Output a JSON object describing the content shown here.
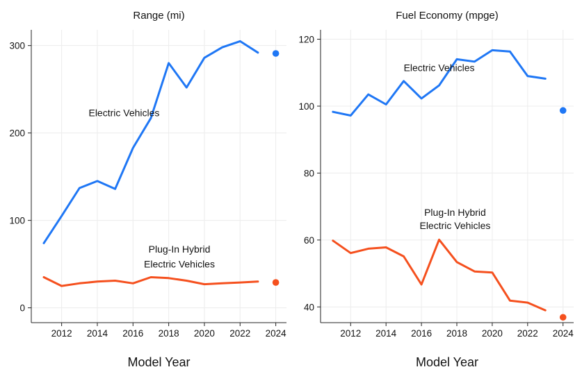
{
  "chart_data": [
    {
      "type": "line",
      "title": "Range (mi)",
      "xlabel": "Model Year",
      "ylabel": "",
      "xlim": [
        2010.3,
        2024.6
      ],
      "ylim": [
        -17,
        318
      ],
      "xticks": [
        2012,
        2014,
        2016,
        2018,
        2020,
        2022,
        2024
      ],
      "yticks": [
        0,
        100,
        200,
        300
      ],
      "grid": true,
      "series": [
        {
          "name": "Electric Vehicles",
          "color": "#1f77f5",
          "x": [
            2011,
            2012,
            2013,
            2014,
            2015,
            2016,
            2017,
            2018,
            2019,
            2020,
            2021,
            2022,
            2023
          ],
          "values": [
            74,
            105,
            137,
            145,
            136,
            183,
            217,
            280,
            252,
            286,
            298,
            305,
            292
          ],
          "point_2024": 291
        },
        {
          "name": "Plug-In Hybrid Electric Vehicles",
          "color": "#f5501e",
          "x": [
            2011,
            2012,
            2013,
            2014,
            2015,
            2016,
            2017,
            2018,
            2019,
            2020,
            2021,
            2022,
            2023
          ],
          "values": [
            35,
            25,
            28,
            30,
            31,
            28,
            35,
            34,
            31,
            27,
            28,
            29,
            30
          ],
          "point_2024": 29
        }
      ],
      "annotations": [
        {
          "text": "Electric Vehicles",
          "x": 2015.5,
          "y": 219
        },
        {
          "text": "Plug-In Hybrid",
          "x": 2018.6,
          "y": 63
        },
        {
          "text": "Electric Vehicles",
          "x": 2018.6,
          "y": 46
        }
      ]
    },
    {
      "type": "line",
      "title": "Fuel Economy (mpge)",
      "xlabel": "Model Year",
      "ylabel": "",
      "xlim": [
        2010.3,
        2024.6
      ],
      "ylim": [
        35.3,
        122.8
      ],
      "xticks": [
        2012,
        2014,
        2016,
        2018,
        2020,
        2022,
        2024
      ],
      "yticks": [
        40,
        60,
        80,
        100,
        120
      ],
      "grid": true,
      "series": [
        {
          "name": "Electric Vehicles",
          "color": "#1f77f5",
          "x": [
            2011,
            2012,
            2013,
            2014,
            2015,
            2016,
            2017,
            2018,
            2019,
            2020,
            2021,
            2022,
            2023
          ],
          "values": [
            98.3,
            97.2,
            103.5,
            100.5,
            107.5,
            102.3,
            106.2,
            114,
            113.3,
            116.7,
            116.3,
            109,
            108.2
          ],
          "point_2024": 98.7
        },
        {
          "name": "Plug-In Hybrid Electric Vehicles",
          "color": "#f5501e",
          "x": [
            2011,
            2012,
            2013,
            2014,
            2015,
            2016,
            2017,
            2018,
            2019,
            2020,
            2021,
            2022,
            2023
          ],
          "values": [
            59.8,
            56.1,
            57.4,
            57.8,
            55.1,
            46.7,
            60.1,
            53.4,
            50.6,
            50.3,
            41.9,
            41.3,
            39
          ],
          "point_2024": 36.9
        }
      ],
      "annotations": [
        {
          "text": "Electric Vehicles",
          "x": 2017,
          "y": 110.5
        },
        {
          "text": "Plug-In Hybrid",
          "x": 2017.9,
          "y": 67.2
        },
        {
          "text": "Electric Vehicles",
          "x": 2017.9,
          "y": 63.3
        }
      ]
    }
  ]
}
